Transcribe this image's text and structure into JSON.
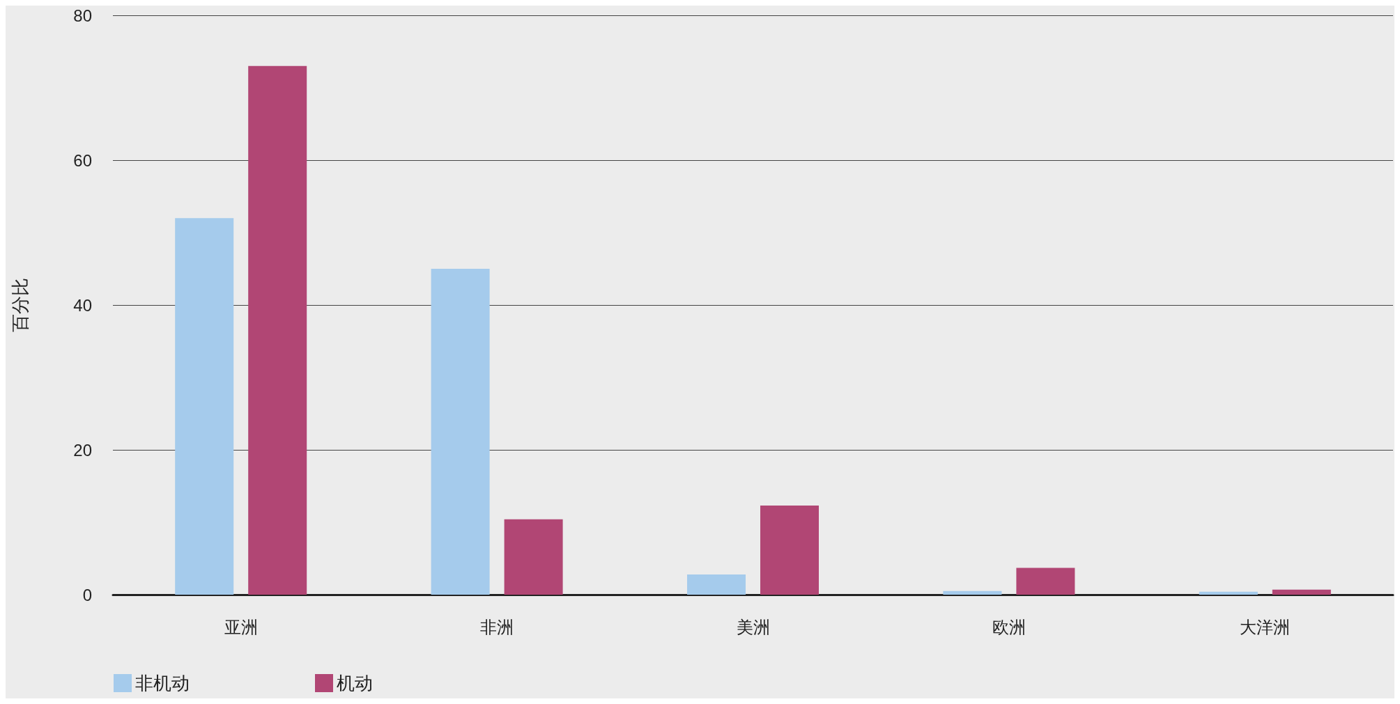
{
  "chart_data": {
    "type": "bar",
    "ylabel": "百分比",
    "categories": [
      "亚洲",
      "非洲",
      "美洲",
      "欧洲",
      "大洋洲"
    ],
    "series": [
      {
        "name": "非机动",
        "color": "#a5cbec",
        "values": [
          52,
          45,
          2.8,
          0.5,
          0.4
        ]
      },
      {
        "name": "机动",
        "color": "#b14674",
        "values": [
          73,
          10.4,
          12.3,
          3.7,
          0.7
        ]
      }
    ],
    "ylim": [
      0,
      80
    ],
    "yticks": [
      0,
      20,
      40,
      60,
      80
    ],
    "grid": "y",
    "legend": "bottom left"
  }
}
